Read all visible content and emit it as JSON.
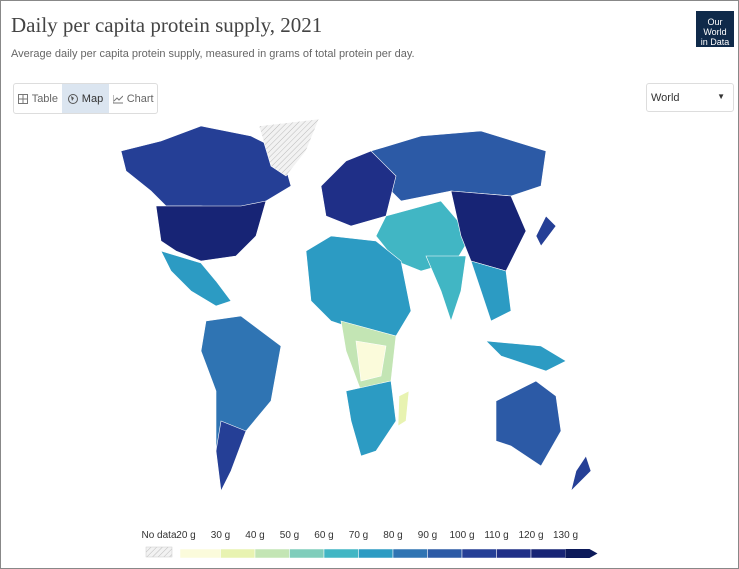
{
  "header": {
    "title": "Daily per capita protein supply, 2021",
    "subtitle": "Average daily per capita protein supply, measured in grams of total protein per day.",
    "logo": [
      "Our World",
      "in Data"
    ]
  },
  "tabs": [
    "Table",
    "Map",
    "Chart"
  ],
  "region_select": "World",
  "legend": {
    "no_data": "No data",
    "labels": [
      "20 g",
      "30 g",
      "40 g",
      "50 g",
      "60 g",
      "70 g",
      "80 g",
      "90 g",
      "100 g",
      "110 g",
      "120 g",
      "130 g"
    ],
    "colors": [
      "#fbfbdb",
      "#e8f3b1",
      "#c3e5b4",
      "#7fcdbb",
      "#41b6c4",
      "#2c9bc3",
      "#2f74b3",
      "#2c5aa6",
      "#253f96",
      "#1f2f87",
      "#172475",
      "#0c1a5a"
    ]
  }
}
